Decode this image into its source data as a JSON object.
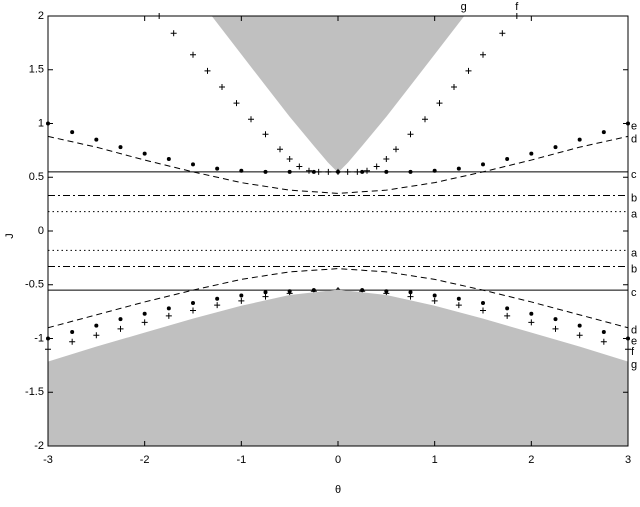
{
  "chart_data": {
    "type": "line",
    "x_label": "θ",
    "y_label": "J",
    "xlim": [
      -3,
      3
    ],
    "ylim": [
      -2,
      2
    ],
    "xticks": [
      -3,
      -2,
      -1,
      0,
      1,
      2,
      3
    ],
    "yticks": [
      -2,
      -1.5,
      -1,
      -0.5,
      0,
      0.5,
      1,
      1.5,
      2
    ],
    "series": [
      {
        "name": "g",
        "style": "fill-above",
        "color": "#c0c0c0",
        "label_at": "top",
        "x": [
          -1.3,
          -1,
          -0.75,
          -0.5,
          -0.25,
          -0.1,
          0,
          0.1,
          0.25,
          0.5,
          0.75,
          1,
          1.3
        ],
        "values": [
          2,
          1.65,
          1.36,
          1.07,
          0.8,
          0.64,
          0.55,
          0.64,
          0.8,
          1.07,
          1.36,
          1.65,
          2
        ]
      },
      {
        "name": "f",
        "style": "crosses",
        "color": "#000000",
        "label_at": "top",
        "x": [
          -1.85,
          -1.7,
          -1.5,
          -1.35,
          -1.2,
          -1.05,
          -0.9,
          -0.75,
          -0.6,
          -0.5,
          -0.4,
          -0.3,
          -0.2,
          -0.1,
          0,
          0.1,
          0.2,
          0.3,
          0.4,
          0.5,
          0.6,
          0.75,
          0.9,
          1.05,
          1.2,
          1.35,
          1.5,
          1.7,
          1.85
        ],
        "values": [
          2,
          1.84,
          1.64,
          1.49,
          1.34,
          1.19,
          1.04,
          0.9,
          0.76,
          0.67,
          0.6,
          0.56,
          0.55,
          0.55,
          0.55,
          0.55,
          0.55,
          0.56,
          0.6,
          0.67,
          0.76,
          0.9,
          1.04,
          1.19,
          1.34,
          1.49,
          1.64,
          1.84,
          2
        ]
      },
      {
        "name": "e",
        "style": "dots",
        "color": "#000000",
        "label_at": "right",
        "x": [
          -3,
          -2.75,
          -2.5,
          -2.25,
          -2,
          -1.75,
          -1.5,
          -1.25,
          -1,
          -0.75,
          -0.5,
          -0.25,
          0,
          0.25,
          0.5,
          0.75,
          1,
          1.25,
          1.5,
          1.75,
          2,
          2.25,
          2.5,
          2.75,
          3
        ],
        "values": [
          1.0,
          0.92,
          0.85,
          0.78,
          0.72,
          0.67,
          0.62,
          0.58,
          0.56,
          0.55,
          0.55,
          0.55,
          0.55,
          0.55,
          0.55,
          0.55,
          0.56,
          0.58,
          0.62,
          0.67,
          0.72,
          0.78,
          0.85,
          0.92,
          1.0
        ]
      },
      {
        "name": "d",
        "style": "dashed",
        "color": "#000000",
        "label_at": "right",
        "x": [
          -3,
          -2.5,
          -2,
          -1.5,
          -1,
          -0.5,
          0,
          0.5,
          1,
          1.5,
          2,
          2.5,
          3
        ],
        "values": [
          0.88,
          0.78,
          0.66,
          0.55,
          0.45,
          0.38,
          0.35,
          0.38,
          0.45,
          0.55,
          0.66,
          0.78,
          0.88
        ]
      },
      {
        "name": "c",
        "style": "solid",
        "color": "#000000",
        "label_at": "right",
        "x": [
          -3,
          3
        ],
        "values": [
          0.55,
          0.55
        ]
      },
      {
        "name": "b",
        "style": "dashdot",
        "color": "#000000",
        "label_at": "right",
        "x": [
          -3,
          3
        ],
        "values": [
          0.33,
          0.33
        ]
      },
      {
        "name": "a",
        "style": "dotted",
        "color": "#000000",
        "label_at": "right",
        "x": [
          -3,
          3
        ],
        "values": [
          0.18,
          0.18
        ]
      },
      {
        "name": "a",
        "style": "dotted",
        "color": "#000000",
        "label_at": "right",
        "x": [
          -3,
          3
        ],
        "values": [
          -0.18,
          -0.18
        ]
      },
      {
        "name": "b",
        "style": "dashdot",
        "color": "#000000",
        "label_at": "right",
        "x": [
          -3,
          3
        ],
        "values": [
          -0.33,
          -0.33
        ]
      },
      {
        "name": "c",
        "style": "solid",
        "color": "#000000",
        "label_at": "right",
        "x": [
          -3,
          3
        ],
        "values": [
          -0.55,
          -0.55
        ]
      },
      {
        "name": "d",
        "style": "dashed",
        "color": "#000000",
        "label_at": "right",
        "x": [
          -3,
          -2.5,
          -2,
          -1.5,
          -1,
          -0.5,
          0,
          0.5,
          1,
          1.5,
          2,
          2.5,
          3
        ],
        "values": [
          -0.9,
          -0.78,
          -0.66,
          -0.55,
          -0.45,
          -0.38,
          -0.35,
          -0.38,
          -0.45,
          -0.55,
          -0.66,
          -0.78,
          -0.9
        ]
      },
      {
        "name": "e",
        "style": "dots",
        "color": "#000000",
        "label_at": "right",
        "x": [
          -3,
          -2.75,
          -2.5,
          -2.25,
          -2,
          -1.75,
          -1.5,
          -1.25,
          -1,
          -0.75,
          -0.5,
          -0.25,
          0,
          0.25,
          0.5,
          0.75,
          1,
          1.25,
          1.5,
          1.75,
          2,
          2.25,
          2.5,
          2.75,
          3
        ],
        "values": [
          -1.0,
          -0.94,
          -0.88,
          -0.82,
          -0.77,
          -0.72,
          -0.67,
          -0.63,
          -0.6,
          -0.57,
          -0.56,
          -0.55,
          -0.55,
          -0.55,
          -0.56,
          -0.57,
          -0.6,
          -0.63,
          -0.67,
          -0.72,
          -0.77,
          -0.82,
          -0.88,
          -0.94,
          -1.0
        ]
      },
      {
        "name": "f",
        "style": "crosses",
        "color": "#000000",
        "label_at": "right",
        "x": [
          -3,
          -2.75,
          -2.5,
          -2.25,
          -2,
          -1.75,
          -1.5,
          -1.25,
          -1,
          -0.75,
          -0.5,
          -0.25,
          0,
          0.25,
          0.5,
          0.75,
          1,
          1.25,
          1.5,
          1.75,
          2,
          2.25,
          2.5,
          2.75,
          3
        ],
        "values": [
          -1.1,
          -1.03,
          -0.97,
          -0.91,
          -0.85,
          -0.79,
          -0.74,
          -0.69,
          -0.65,
          -0.61,
          -0.58,
          -0.56,
          -0.55,
          -0.56,
          -0.58,
          -0.61,
          -0.65,
          -0.69,
          -0.74,
          -0.79,
          -0.85,
          -0.91,
          -0.97,
          -1.03,
          -1.1
        ]
      },
      {
        "name": "g",
        "style": "fill-below",
        "color": "#c0c0c0",
        "label_at": "right",
        "x": [
          -3,
          -2.5,
          -2,
          -1.5,
          -1,
          -0.5,
          0,
          0.5,
          1,
          1.5,
          2,
          2.5,
          3
        ],
        "values": [
          -1.22,
          -1.08,
          -0.95,
          -0.82,
          -0.7,
          -0.6,
          -0.55,
          -0.6,
          -0.7,
          -0.82,
          -0.95,
          -1.08,
          -1.22
        ]
      }
    ]
  }
}
